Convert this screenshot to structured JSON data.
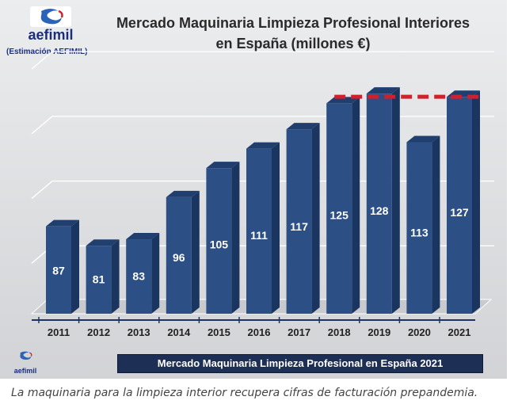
{
  "logo": {
    "name": "aefimil",
    "estimate_note": "(Estimación AEFIMIL)"
  },
  "colors": {
    "bar_front": "#2c4f86",
    "bar_side": "#1a355f",
    "bar_top": "#203f6e",
    "target_line": "#d0202c",
    "footer_bg": "#1e2f55"
  },
  "chart_data": {
    "type": "bar",
    "title": [
      "Mercado Maquinaria Limpieza Profesional Interiores",
      "en España (millones €)"
    ],
    "categories": [
      "2011",
      "2012",
      "2013",
      "2014",
      "2015",
      "2016",
      "2017",
      "2018",
      "2019",
      "2020",
      "2021"
    ],
    "values": [
      87,
      81,
      83,
      96,
      105,
      111,
      117,
      125,
      128,
      113,
      127
    ],
    "data_labels": [
      "87",
      "81",
      "83",
      "96",
      "105",
      "111",
      "117",
      "125",
      "128",
      "113",
      "127"
    ],
    "ylim": [
      60,
      130
    ],
    "xlabel": "",
    "ylabel": "",
    "grid": true,
    "reference_line": {
      "value": 128,
      "style": "dashed",
      "from_category": "2018",
      "to_category": "2021"
    }
  },
  "footer": {
    "label": "Mercado Maquinaria Limpieza Profesional en España 2021"
  },
  "caption": "La maquinaria para la limpieza interior recupera cifras de facturación prepandemia."
}
